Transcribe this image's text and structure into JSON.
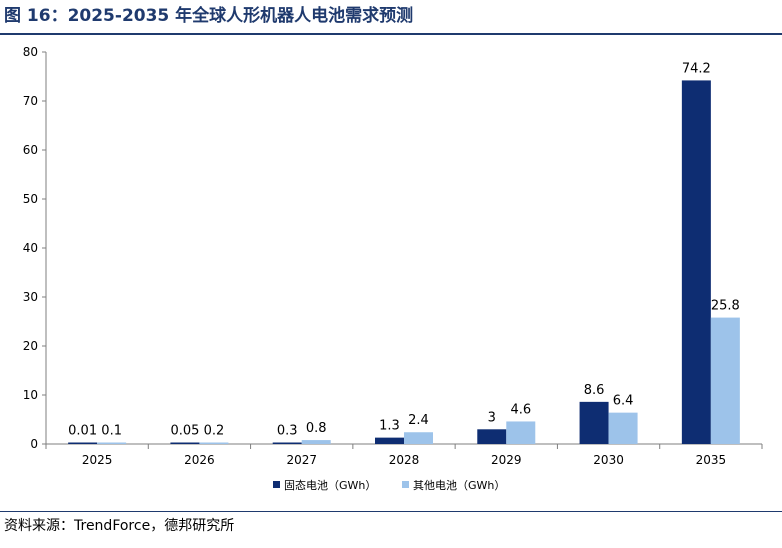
{
  "header": {
    "title": "图 16：2025-2035 年全球人形机器人电池需求预测"
  },
  "footer": {
    "source": "资料来源：TrendForce，德邦研究所"
  },
  "colors": {
    "solid_state": "#0e2d72",
    "other": "#9dc3ea",
    "rule": "#1f3a6e"
  },
  "chart_data": {
    "type": "bar",
    "title": "",
    "xlabel": "",
    "ylabel": "",
    "categories": [
      "2025",
      "2026",
      "2027",
      "2028",
      "2029",
      "2030",
      "2035"
    ],
    "series": [
      {
        "name": "固态电池（GWh）",
        "values": [
          0.01,
          0.05,
          0.3,
          1.3,
          3,
          8.6,
          74.2
        ],
        "labels": [
          "0.01",
          "0.05",
          "0.3",
          "1.3",
          "3",
          "8.6",
          "74.2"
        ]
      },
      {
        "name": "其他电池（GWh）",
        "values": [
          0.1,
          0.2,
          0.8,
          2.4,
          4.6,
          6.4,
          25.8
        ],
        "labels": [
          "0.1",
          "0.2",
          "0.8",
          "2.4",
          "4.6",
          "6.4",
          "25.8"
        ]
      }
    ],
    "ylim": [
      0,
      80
    ],
    "yticks": [
      0,
      10,
      20,
      30,
      40,
      50,
      60,
      70,
      80
    ],
    "grid": false,
    "legend": "bottom-center"
  }
}
